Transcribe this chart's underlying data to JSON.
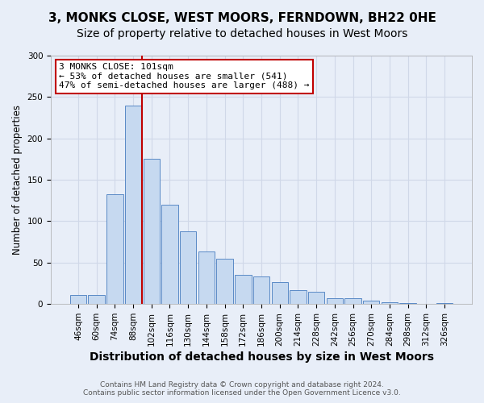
{
  "title": "3, MONKS CLOSE, WEST MOORS, FERNDOWN, BH22 0HE",
  "subtitle": "Size of property relative to detached houses in West Moors",
  "xlabel": "Distribution of detached houses by size in West Moors",
  "ylabel": "Number of detached properties",
  "footer_line1": "Contains HM Land Registry data © Crown copyright and database right 2024.",
  "footer_line2": "Contains public sector information licensed under the Open Government Licence v3.0.",
  "categories": [
    "46sqm",
    "60sqm",
    "74sqm",
    "88sqm",
    "102sqm",
    "116sqm",
    "130sqm",
    "144sqm",
    "158sqm",
    "172sqm",
    "186sqm",
    "200sqm",
    "214sqm",
    "228sqm",
    "242sqm",
    "256sqm",
    "270sqm",
    "284sqm",
    "298sqm",
    "312sqm",
    "326sqm"
  ],
  "values": [
    11,
    11,
    133,
    240,
    175,
    120,
    88,
    63,
    55,
    35,
    33,
    26,
    17,
    15,
    7,
    7,
    4,
    2,
    1,
    0,
    1
  ],
  "bar_color": "#c6d9f0",
  "bar_edge_color": "#5a8ac6",
  "marker_bin_index": 4,
  "marker_label": "3 MONKS CLOSE: 101sqm",
  "annotation_line1": "← 53% of detached houses are smaller (541)",
  "annotation_line2": "47% of semi-detached houses are larger (488) →",
  "marker_color": "#c00000",
  "ylim": [
    0,
    300
  ],
  "yticks": [
    0,
    50,
    100,
    150,
    200,
    250,
    300
  ],
  "background_color": "#e8eef8",
  "grid_color": "#d0d8e8",
  "title_fontsize": 11,
  "subtitle_fontsize": 10,
  "xlabel_fontsize": 10,
  "ylabel_fontsize": 8.5,
  "tick_fontsize": 7.5,
  "annotation_fontsize": 8,
  "annotation_box_edge_color": "#c00000",
  "annotation_box_face_color": "#ffffff",
  "footer_fontsize": 6.5,
  "footer_color": "#555555"
}
